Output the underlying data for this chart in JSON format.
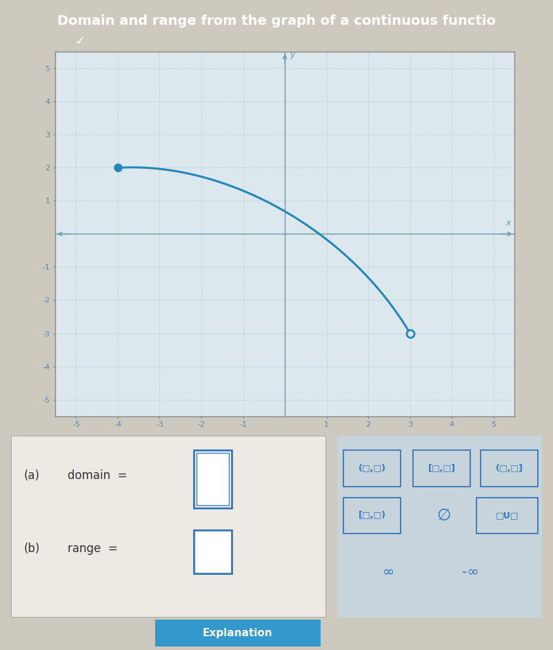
{
  "title": "Domain and range from the graph of a continuous functio",
  "title_bg": "#3399cc",
  "title_color": "white",
  "title_fontsize": 14,
  "graph_bg": "#dde8ee",
  "grid_color": "#99bbcc",
  "axis_color": "#6699aa",
  "curve_color": "#2288bb",
  "curve_lw": 2.2,
  "filled_dot": [
    -4,
    2
  ],
  "open_dot": [
    3,
    -3
  ],
  "xlim": [
    -5.5,
    5.5
  ],
  "ylim": [
    -5.5,
    5.5
  ],
  "page_bg": "#cdc9be",
  "left_panel_bg": "#ede9e3",
  "answer_box_color": "#3377bb",
  "right_panel_bg": "#c8d4dc",
  "right_panel_border": "#99aabb",
  "tick_color": "#5588aa",
  "tick_fontsize": 8
}
